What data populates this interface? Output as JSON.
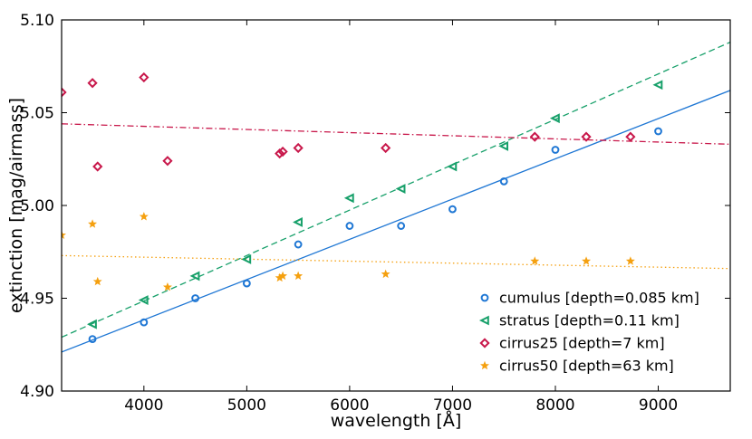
{
  "chart_data": {
    "type": "scatter",
    "xlabel": "wavelength [Å]",
    "ylabel": "extinction [mag/airmass]",
    "xlim": [
      3200,
      9700
    ],
    "ylim": [
      4.9,
      5.1
    ],
    "xticks": [
      4000,
      5000,
      6000,
      7000,
      8000,
      9000
    ],
    "xtick_labels": [
      "4000",
      "5000",
      "6000",
      "7000",
      "8000",
      "9000"
    ],
    "yticks": [
      4.9,
      4.95,
      5.0,
      5.05,
      5.1
    ],
    "ytick_labels": [
      "4.90",
      "4.95",
      "5.00",
      "5.05",
      "5.10"
    ],
    "grid": false,
    "legend_position": "bottom-right",
    "series": [
      {
        "name": "cumulus [depth=0.085 km]",
        "color": "#1f77d4",
        "marker": "circle",
        "x": [
          3500,
          4000,
          4500,
          5000,
          5500,
          6000,
          6500,
          7000,
          7500,
          8000,
          9000
        ],
        "y": [
          4.928,
          4.937,
          4.95,
          4.958,
          4.979,
          4.989,
          4.989,
          4.998,
          5.013,
          5.03,
          5.04
        ],
        "fit": {
          "style": "solid",
          "y_at_xmin": 4.921,
          "y_at_xmax": 5.062
        }
      },
      {
        "name": "stratus [depth=0.11 km]",
        "color": "#17a06a",
        "marker": "triangle-left",
        "x": [
          3500,
          4000,
          4500,
          5000,
          5500,
          6000,
          6500,
          7000,
          7500,
          8000,
          9000
        ],
        "y": [
          4.936,
          4.949,
          4.962,
          4.971,
          4.991,
          5.004,
          5.009,
          5.021,
          5.032,
          5.047,
          5.065
        ],
        "fit": {
          "style": "dashed",
          "y_at_xmin": 4.929,
          "y_at_xmax": 5.088
        }
      },
      {
        "name": "cirrus25 [depth=7 km]",
        "color": "#c8174a",
        "marker": "diamond",
        "x": [
          3200,
          3500,
          3550,
          4000,
          4230,
          5320,
          5350,
          5500,
          6350,
          7800,
          8300,
          8730
        ],
        "y": [
          5.061,
          5.066,
          5.021,
          5.069,
          5.024,
          5.028,
          5.029,
          5.031,
          5.031,
          5.037,
          5.037,
          5.037
        ],
        "fit": {
          "style": "dashdot",
          "y_at_xmin": 5.044,
          "y_at_xmax": 5.033
        }
      },
      {
        "name": "cirrus50 [depth=63 km]",
        "color": "#f5a00f",
        "marker": "star",
        "x": [
          3200,
          3500,
          3550,
          4000,
          4230,
          5320,
          5350,
          5500,
          6350,
          7800,
          8300,
          8730
        ],
        "y": [
          4.984,
          4.99,
          4.959,
          4.994,
          4.956,
          4.961,
          4.962,
          4.962,
          4.963,
          4.97,
          4.97,
          4.97
        ],
        "fit": {
          "style": "dotted",
          "y_at_xmin": 4.973,
          "y_at_xmax": 4.966
        }
      }
    ]
  }
}
